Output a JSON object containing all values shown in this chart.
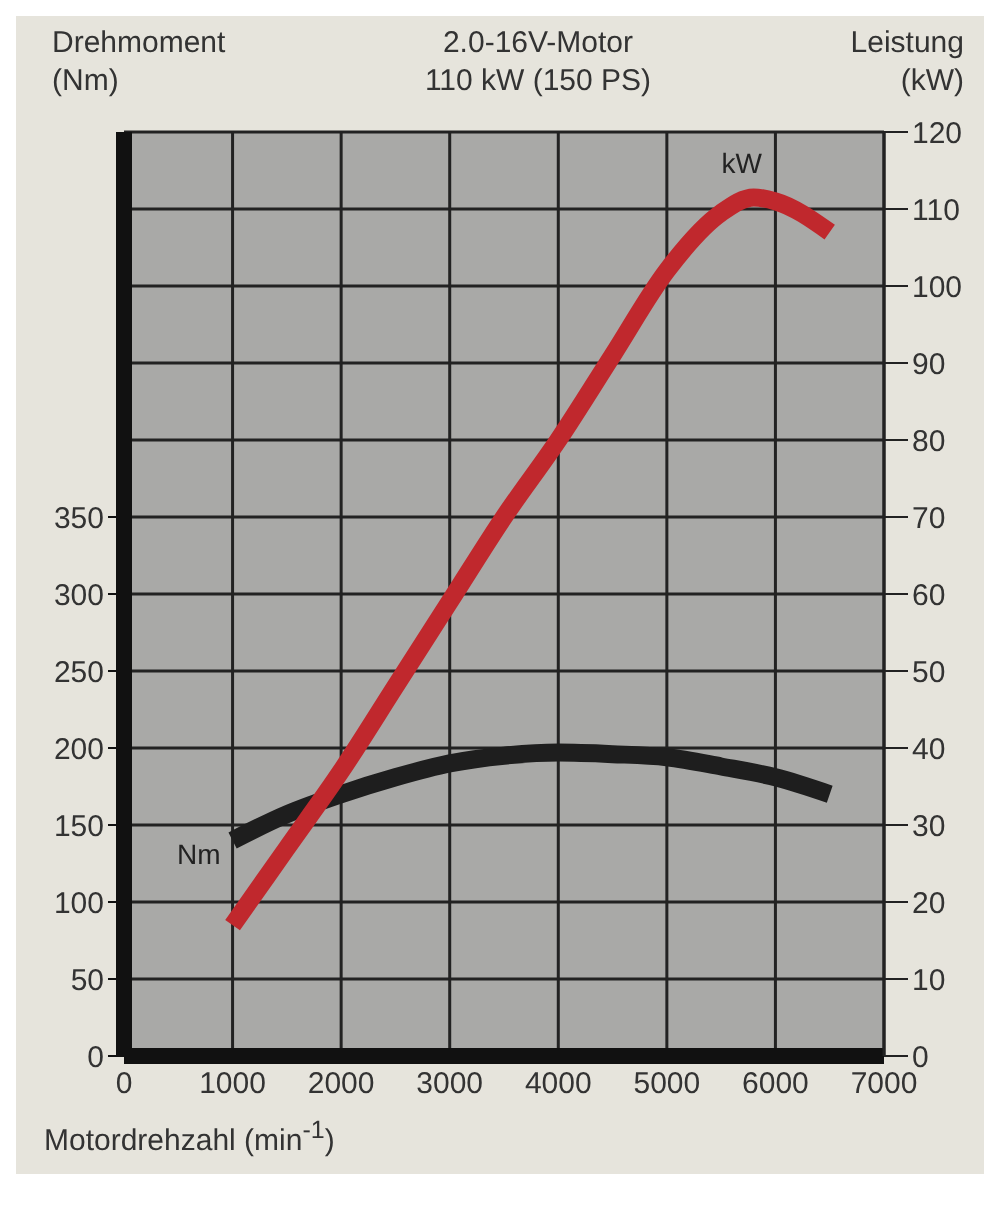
{
  "chart_data": {
    "type": "line",
    "title": "2.0-16V-Motor",
    "subtitle": "110 kW (150 PS)",
    "ylabel": "Drehmoment (Nm)",
    "y2label": "Leistung (kW)",
    "xlabel": "Motordrehzahl (min$^{-1}$)",
    "xlim": [
      0,
      7000
    ],
    "xticks": [
      0,
      1000,
      2000,
      3000,
      4000,
      5000,
      6000,
      7000
    ],
    "ylim": [
      0,
      600
    ],
    "yticks": [
      0,
      50,
      100,
      150,
      200,
      250,
      300,
      350
    ],
    "y2lim": [
      0,
      120
    ],
    "y2ticks": [
      0,
      10,
      20,
      30,
      40,
      50,
      60,
      70,
      80,
      90,
      100,
      110,
      120
    ],
    "grid": true,
    "series": [
      {
        "name": "Nm",
        "color": "#1e1e1e",
        "x": [
          1000,
          1500,
          2000,
          2500,
          3000,
          3500,
          4000,
          4500,
          5000,
          5500,
          6000,
          6500
        ],
        "values": [
          140,
          157,
          170,
          181,
          190,
          195,
          197,
          196,
          194,
          188,
          181,
          170
        ]
      },
      {
        "name": "kW",
        "color": "#c0282d",
        "axis": "y2",
        "x": [
          1000,
          1500,
          2000,
          2500,
          3000,
          3500,
          4000,
          4500,
          5000,
          5500,
          5800,
          6000,
          6500
        ],
        "values": [
          17,
          27,
          37,
          48,
          59,
          70,
          80,
          91,
          102,
          109.5,
          111.5,
          111,
          107
        ]
      }
    ]
  }
}
